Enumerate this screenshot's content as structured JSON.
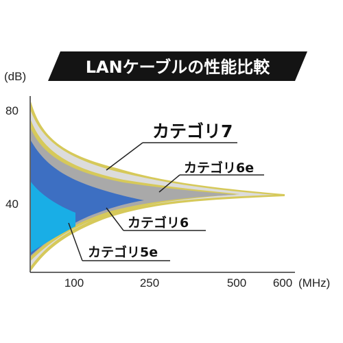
{
  "chart_data": {
    "type": "area",
    "title": "LANケーブルの性能比較",
    "ylabel_unit": "(dB)",
    "xlabel_unit": "(MHz)",
    "y_ticks": [
      "80",
      "40"
    ],
    "x_ticks": [
      "100",
      "250",
      "500",
      "600"
    ],
    "series": [
      {
        "name": "カテゴリ7",
        "color": "#d8d8d8",
        "border": "#d6c95a"
      },
      {
        "name": "カテゴリ6e",
        "color": "#a9a9a9",
        "border": "#d6c95a"
      },
      {
        "name": "カテゴリ6",
        "color": "#3d6fc2",
        "border": "#d6c95a"
      },
      {
        "name": "カテゴリ5e",
        "color": "#19aee6",
        "border": "#d6c95a"
      }
    ],
    "colors": {
      "banner": "#141414",
      "banner_text": "#ffffff",
      "axis": "#333333"
    }
  }
}
